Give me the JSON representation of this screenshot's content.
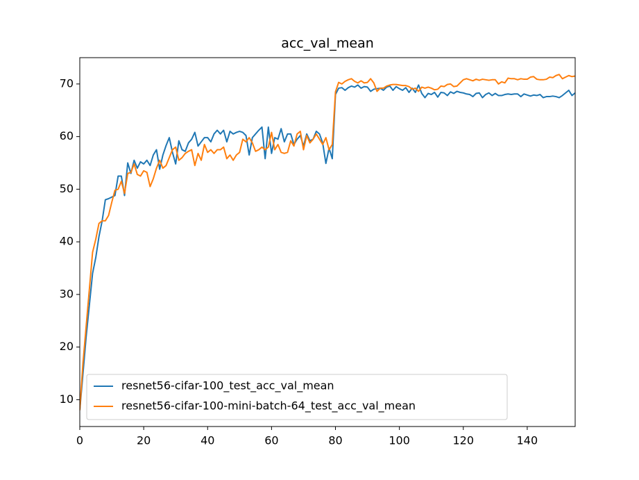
{
  "chart_data": {
    "type": "line",
    "title": "acc_val_mean",
    "x": [
      0,
      1,
      2,
      3,
      4,
      5,
      6,
      7,
      8,
      9,
      10,
      11,
      12,
      13,
      14,
      15,
      16,
      17,
      18,
      19,
      20,
      21,
      22,
      23,
      24,
      25,
      26,
      27,
      28,
      29,
      30,
      31,
      32,
      33,
      34,
      35,
      36,
      37,
      38,
      39,
      40,
      41,
      42,
      43,
      44,
      45,
      46,
      47,
      48,
      49,
      50,
      51,
      52,
      53,
      54,
      55,
      56,
      57,
      58,
      59,
      60,
      61,
      62,
      63,
      64,
      65,
      66,
      67,
      68,
      69,
      70,
      71,
      72,
      73,
      74,
      75,
      76,
      77,
      78,
      79,
      80,
      81,
      82,
      83,
      84,
      85,
      86,
      87,
      88,
      89,
      90,
      91,
      92,
      93,
      94,
      95,
      96,
      97,
      98,
      99,
      100,
      101,
      102,
      103,
      104,
      105,
      106,
      107,
      108,
      109,
      110,
      111,
      112,
      113,
      114,
      115,
      116,
      117,
      118,
      119,
      120,
      121,
      122,
      123,
      124,
      125,
      126,
      127,
      128,
      129,
      130,
      131,
      132,
      133,
      134,
      135,
      136,
      137,
      138,
      139,
      140,
      141,
      142,
      143,
      144,
      145,
      146,
      147,
      148,
      149,
      150,
      151,
      152,
      153,
      154,
      155
    ],
    "series": [
      {
        "name": "resnet56-cifar-100_test_acc_val_mean",
        "color": "#1f77b4",
        "values": [
          8,
          15,
          22,
          28,
          34,
          37,
          41,
          44,
          48,
          48.2,
          48.5,
          48.8,
          52.5,
          52.5,
          48.8,
          55,
          53,
          55.5,
          54,
          55.2,
          54.8,
          55.5,
          54.5,
          56.5,
          57.5,
          53.8,
          56.5,
          58.3,
          59.8,
          57,
          54.8,
          59.2,
          57.5,
          57.2,
          58.8,
          59.5,
          60.8,
          58.2,
          59,
          59.8,
          59.8,
          59,
          60.5,
          61.2,
          60.5,
          61.2,
          59,
          61,
          60.5,
          60.8,
          61,
          60.8,
          60.2,
          56.5,
          59.8,
          60.5,
          61.2,
          61.8,
          55.8,
          61.8,
          56.8,
          59.8,
          59.5,
          61.5,
          59,
          60.5,
          60.5,
          58.5,
          59.5,
          60.2,
          58.2,
          60.5,
          59.2,
          59.5,
          61,
          60.5,
          58.8,
          54.9,
          57.8,
          55.8,
          68,
          69.2,
          69.3,
          68.8,
          69.3,
          69.6,
          69.4,
          69.8,
          69.2,
          69.5,
          69.4,
          68.6,
          69,
          69.1,
          69.2,
          68.8,
          69.4,
          69.6,
          68.8,
          69.5,
          69.1,
          68.8,
          69.3,
          68.4,
          69.2,
          68.4,
          69.8,
          68.2,
          67.4,
          68.2,
          68,
          68.4,
          67.5,
          68.4,
          68.3,
          67.8,
          68.5,
          68.2,
          68.6,
          68.4,
          68.3,
          68.1,
          68,
          67.6,
          68.2,
          68.3,
          67.4,
          68,
          68.3,
          67.8,
          68.2,
          67.8,
          67.8,
          68,
          68.1,
          68,
          68.1,
          68.1,
          67.6,
          68.1,
          67.9,
          67.7,
          67.9,
          67.8,
          68,
          67.4,
          67.6,
          67.6,
          67.7,
          67.6,
          67.4,
          67.8,
          68.3,
          68.8,
          67.8,
          68.3
        ]
      },
      {
        "name": "resnet56-cifar-100-mini-batch-64_test_acc_val_mean",
        "color": "#ff7f0e",
        "values": [
          8,
          17,
          24,
          31,
          38,
          40.5,
          43.5,
          44,
          44,
          45,
          47.5,
          49.8,
          50,
          51.5,
          49.2,
          53,
          53.2,
          54.8,
          52.8,
          52.5,
          53.5,
          53.2,
          50.5,
          52,
          54,
          55.5,
          54,
          54.5,
          56,
          57.5,
          58,
          55.5,
          56,
          56.8,
          57.2,
          57.5,
          54.5,
          56.8,
          55.5,
          58.5,
          57,
          57.5,
          56.8,
          57.5,
          57.5,
          58,
          55.8,
          56.5,
          55.5,
          56.5,
          57,
          59.5,
          59,
          59.8,
          58.8,
          57.2,
          57.5,
          58,
          57.5,
          58,
          60.8,
          57.5,
          58.5,
          57,
          56.8,
          57,
          59.2,
          58.2,
          60.5,
          61,
          57.5,
          60.2,
          58.8,
          59.5,
          60.5,
          59.5,
          58.5,
          59.8,
          57.5,
          58.5,
          68.5,
          70.3,
          70,
          70.5,
          70.8,
          71,
          70.5,
          70.2,
          70.6,
          70.2,
          70.3,
          71,
          70.2,
          68.6,
          69.2,
          69.2,
          69.6,
          69.8,
          69.9,
          69.9,
          69.8,
          69.7,
          69.7,
          69.5,
          69,
          69.2,
          68.6,
          69.4,
          69.2,
          69.4,
          69.2,
          68.9,
          69,
          69.6,
          69.5,
          69.9,
          70,
          69.5,
          69.6,
          70.2,
          70.8,
          71,
          70.8,
          70.6,
          70.9,
          70.7,
          70.9,
          70.8,
          70.7,
          70.8,
          70.8,
          70,
          70.4,
          70.2,
          71.1,
          71,
          71,
          70.8,
          71,
          70.9,
          70.9,
          71.3,
          71.4,
          70.9,
          70.8,
          70.8,
          70.9,
          71.3,
          71.2,
          71.6,
          71.8,
          71,
          71.3,
          71.6,
          71.4,
          71.5
        ]
      }
    ],
    "xlim": [
      0,
      155
    ],
    "ylim": [
      4.9,
      75
    ],
    "xticks": [
      0,
      20,
      40,
      60,
      80,
      100,
      120,
      140
    ],
    "yticks": [
      10,
      20,
      30,
      40,
      50,
      60,
      70
    ],
    "legend": "lower left"
  }
}
